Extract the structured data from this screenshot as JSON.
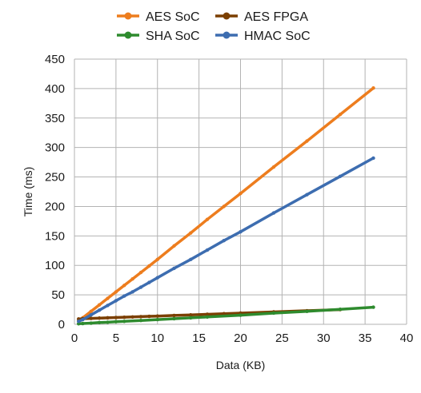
{
  "chart_data": {
    "type": "line",
    "title": "",
    "xlabel": "Data (KB)",
    "ylabel": "Time (ms)",
    "xlim": [
      0,
      40
    ],
    "ylim": [
      0,
      450
    ],
    "xticks": [
      "0",
      "5",
      "10",
      "15",
      "20",
      "25",
      "30",
      "35",
      "40"
    ],
    "yticks": [
      "0",
      "50",
      "100",
      "150",
      "200",
      "250",
      "300",
      "350",
      "400",
      "450"
    ],
    "grid": true,
    "legend_position": "top",
    "series": [
      {
        "name": "AES SoC",
        "color": "#ed7d1e",
        "x": [
          0.5,
          1,
          2,
          3,
          4,
          5,
          6,
          7,
          8,
          9,
          10,
          12,
          14,
          16,
          18,
          20,
          24,
          28,
          32,
          36
        ],
        "y": [
          6,
          11,
          22,
          33,
          44,
          55,
          66,
          77,
          88,
          99,
          110,
          133,
          155,
          178,
          200,
          222,
          267,
          311,
          356,
          401
        ]
      },
      {
        "name": "AES FPGA",
        "color": "#7b3f00",
        "x": [
          0.5,
          1,
          2,
          3,
          4,
          5,
          6,
          7,
          8,
          9,
          10,
          12,
          14,
          16,
          18,
          20,
          24,
          28,
          32
        ],
        "y": [
          9,
          9.5,
          10,
          10.5,
          11,
          11.5,
          12,
          12.5,
          13,
          13.5,
          14,
          15,
          16,
          17,
          18,
          19,
          21,
          23,
          25
        ]
      },
      {
        "name": "SHA SoC",
        "color": "#2e8b2e",
        "x": [
          0.5,
          1,
          2,
          3,
          4,
          5,
          6,
          8,
          10,
          12,
          14,
          16,
          20,
          24,
          28,
          32,
          36
        ],
        "y": [
          1,
          1.3,
          2,
          3,
          3.5,
          4.5,
          5,
          6.5,
          8,
          9.5,
          11,
          12.5,
          15.5,
          19,
          22,
          25.5,
          29
        ]
      },
      {
        "name": "HMAC SoC",
        "color": "#3d6db0",
        "x": [
          0.5,
          1,
          2,
          3,
          4,
          5,
          6,
          7,
          8,
          9,
          10,
          12,
          14,
          16,
          18,
          20,
          24,
          28,
          32,
          36
        ],
        "y": [
          5,
          8,
          16,
          24,
          32,
          40,
          48,
          55,
          63,
          71,
          79,
          95,
          110,
          126,
          142,
          157,
          189,
          220,
          251,
          282
        ]
      }
    ]
  }
}
